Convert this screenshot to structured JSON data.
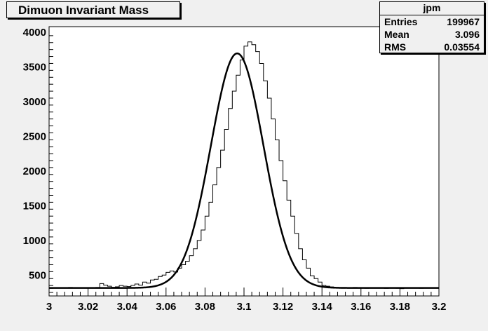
{
  "title": "Dimuon Invariant Mass",
  "stats": {
    "name": "jpm",
    "rows": [
      {
        "label": "Entries",
        "value": "199967"
      },
      {
        "label": "Mean",
        "value": "3.096"
      },
      {
        "label": "RMS",
        "value": "0.03554"
      }
    ]
  },
  "chart_data": {
    "type": "histogram",
    "xlim": [
      3.0,
      3.2
    ],
    "ylim": [
      200,
      4080
    ],
    "x_ticks": [
      "3",
      "3.02",
      "3.04",
      "3.06",
      "3.08",
      "3.1",
      "3.12",
      "3.14",
      "3.16",
      "3.18",
      "3.2"
    ],
    "y_ticks": [
      "500",
      "1000",
      "1500",
      "2000",
      "2500",
      "3000",
      "3500",
      "4000"
    ],
    "fit": {
      "amplitude": 3380,
      "mean": 3.0965,
      "sigma": 0.0135,
      "background": 315
    },
    "bins": {
      "x_start": 3.0,
      "width": 0.002,
      "values": [
        310,
        320,
        315,
        312,
        318,
        322,
        316,
        320,
        314,
        319,
        318,
        316,
        322,
        378,
        355,
        340,
        325,
        332,
        350,
        340,
        335,
        352,
        372,
        355,
        400,
        385,
        430,
        440,
        480,
        500,
        540,
        560,
        545,
        600,
        650,
        700,
        780,
        880,
        1000,
        1150,
        1350,
        1550,
        1800,
        2050,
        2300,
        2600,
        2900,
        3150,
        3380,
        3600,
        3800,
        3860,
        3820,
        3720,
        3550,
        3300,
        3050,
        2750,
        2450,
        2150,
        1860,
        1580,
        1350,
        1100,
        880,
        720,
        600,
        490,
        450,
        400,
        350,
        340,
        330,
        320,
        315,
        310,
        318,
        312,
        322,
        315,
        320,
        310,
        318,
        312,
        315,
        320,
        308,
        316,
        318,
        310,
        305,
        320,
        315,
        312,
        318,
        310,
        315,
        318,
        312,
        316
      ]
    }
  }
}
